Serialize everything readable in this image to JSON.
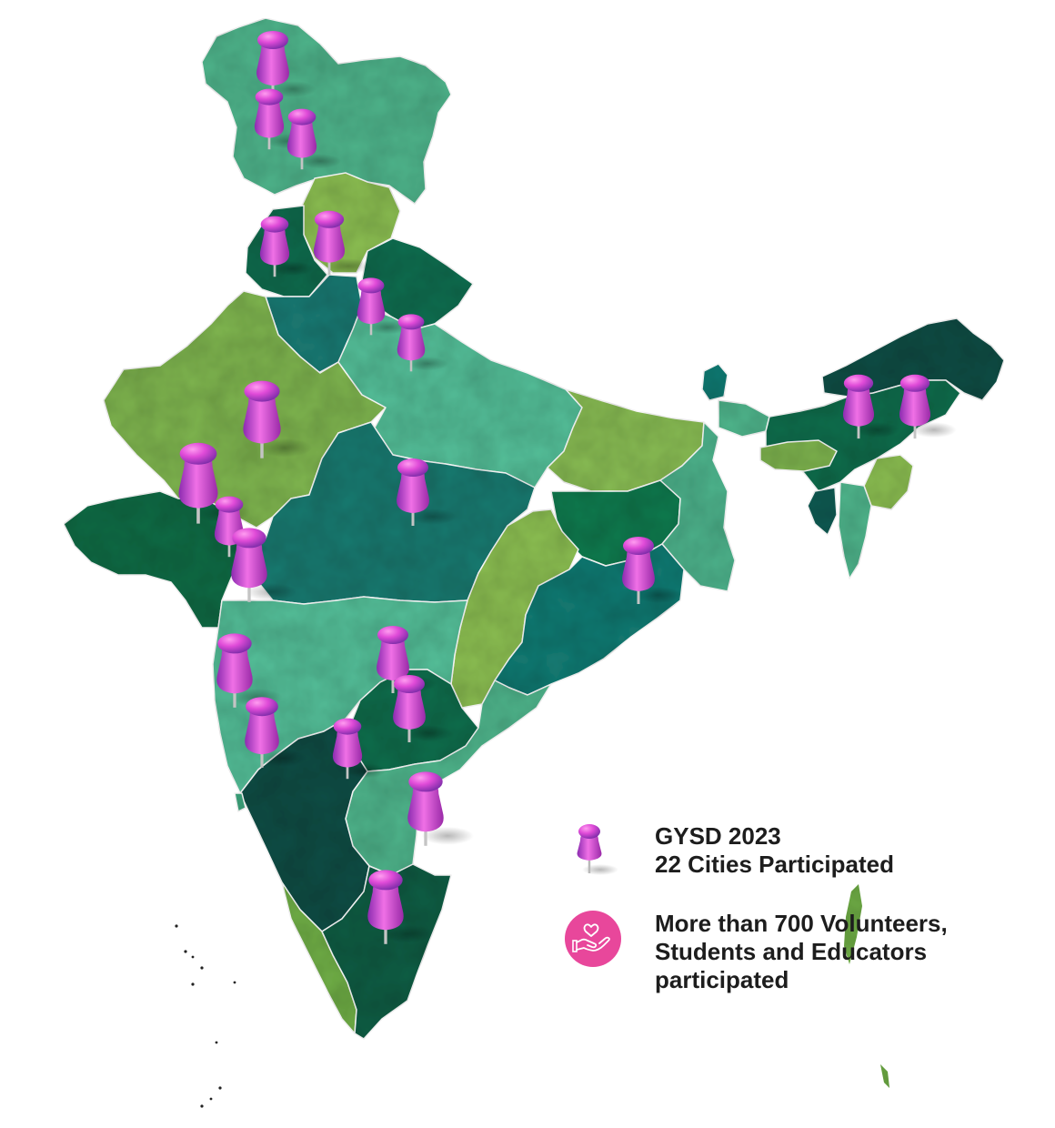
{
  "legend": {
    "cities": {
      "line1": "GYSD 2023",
      "line2": "22 Cities Participated",
      "icon": "pushpin-icon"
    },
    "volunteers": {
      "line1": "More than 700 Volunteers,",
      "line2": "Students and Educators",
      "line3": "participated",
      "icon": "heart-in-hand-icon"
    }
  },
  "colors": {
    "pin": "#d23fd0",
    "volunteer_badge": "#e8479b",
    "region_palette": [
      "#57c099",
      "#0d6b56",
      "#8cbf52",
      "#1b7a73",
      "#0b4d45",
      "#3ea67e"
    ]
  },
  "map": {
    "region": "India",
    "pin_count": 22
  }
}
